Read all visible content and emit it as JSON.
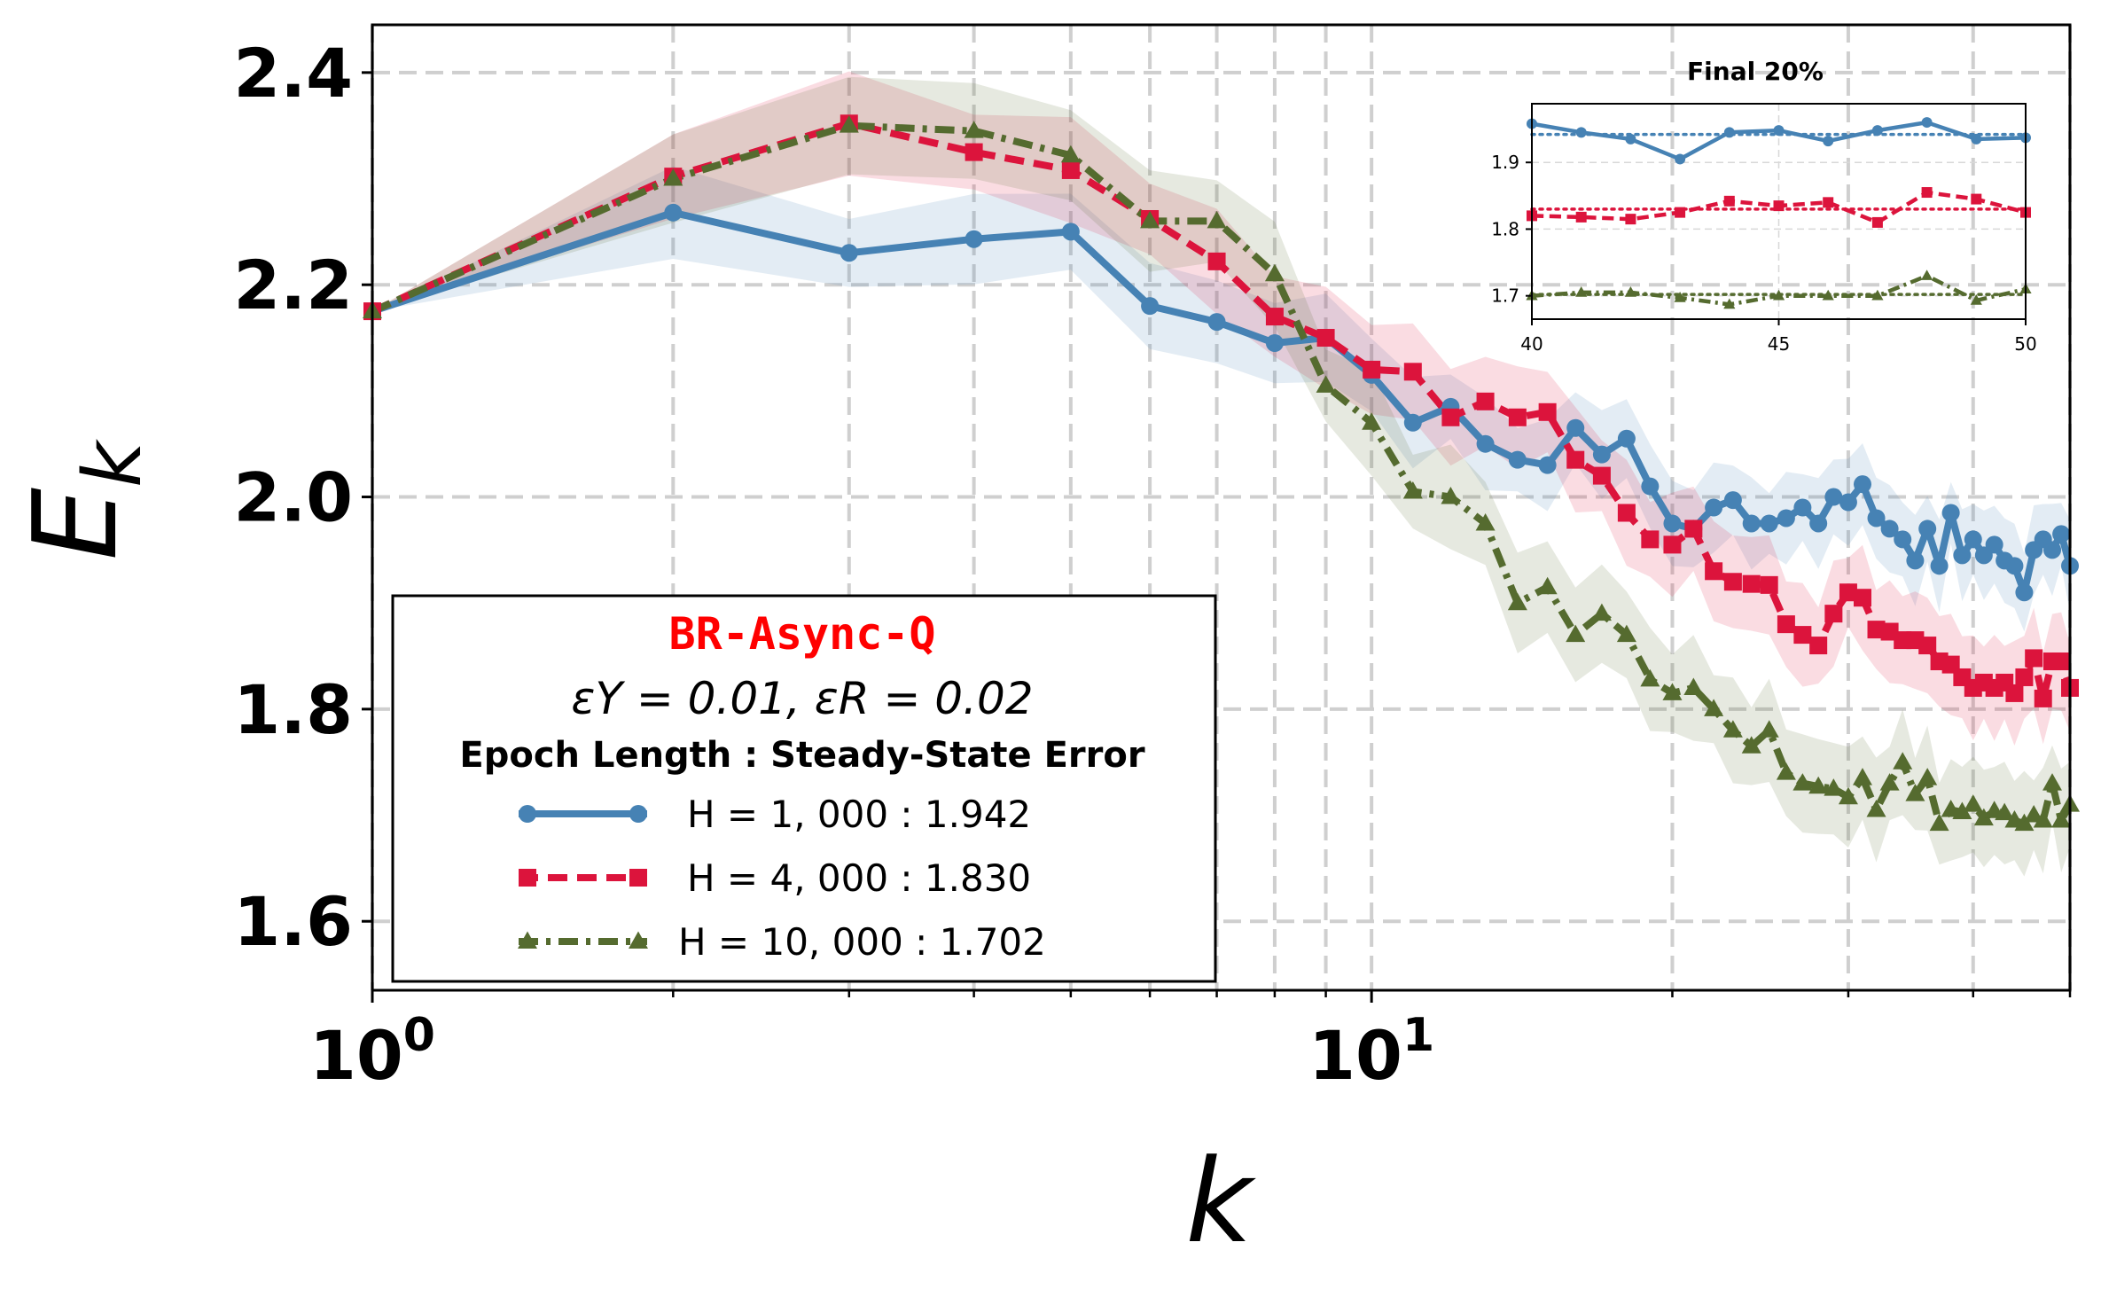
{
  "chart_data": [
    {
      "type": "line",
      "xscale": "log",
      "xlabel": "k",
      "ylabel": "E_k",
      "xlim": [
        1,
        50
      ],
      "ylim": [
        1.535,
        2.445
      ],
      "x_ticks": [
        {
          "v": 1,
          "base": "10",
          "exp": "0"
        },
        {
          "v": 10,
          "base": "10",
          "exp": "1"
        }
      ],
      "y_ticks": [
        1.6,
        1.8,
        2.0,
        2.2,
        2.4
      ],
      "y_tick_labels": [
        "1.6",
        "1.8",
        "2.0",
        "2.2",
        "2.4"
      ],
      "grid": true,
      "legend": {
        "placement": "lower-left",
        "title": "BR-Async-Q",
        "subtitle": "εY = 0.01,  εR = 0.02",
        "header": "Epoch Length : Steady-State Error",
        "entries": [
          "H = 1, 000 :  1.942",
          "H = 4, 000 :  1.830",
          "H = 10, 000 :  1.702"
        ]
      },
      "x": [
        1,
        2,
        3,
        4,
        5,
        6,
        7,
        8,
        9,
        10,
        11,
        12,
        13,
        14,
        15,
        16,
        17,
        18,
        19,
        20,
        21,
        22,
        23,
        24,
        25,
        26,
        27,
        28,
        29,
        30,
        31,
        32,
        33,
        34,
        35,
        36,
        37,
        38,
        39,
        40,
        41,
        42,
        43,
        44,
        45,
        46,
        47,
        48,
        49,
        50
      ],
      "series": [
        {
          "name": "H = 1,000",
          "color": "#4682b4",
          "marker": "circle",
          "dash": "solid",
          "values": [
            2.175,
            2.268,
            2.23,
            2.243,
            2.25,
            2.18,
            2.165,
            2.145,
            2.15,
            2.115,
            2.07,
            2.085,
            2.05,
            2.035,
            2.03,
            2.065,
            2.04,
            2.055,
            2.01,
            1.975,
            1.97,
            1.99,
            1.997,
            1.975,
            1.975,
            1.98,
            1.99,
            1.975,
            2.0,
            1.995,
            2.012,
            1.98,
            1.97,
            1.96,
            1.94,
            1.97,
            1.935,
            1.985,
            1.945,
            1.96,
            1.945,
            1.955,
            1.94,
            1.935,
            1.91,
            1.95,
            1.96,
            1.95,
            1.965,
            1.935
          ],
          "band": 0.035
        },
        {
          "name": "H = 4,000",
          "color": "#dc143c",
          "marker": "square",
          "dash": "dashed",
          "values": [
            2.175,
            2.302,
            2.352,
            2.325,
            2.308,
            2.262,
            2.222,
            2.17,
            2.15,
            2.12,
            2.118,
            2.075,
            2.09,
            2.075,
            2.08,
            2.035,
            2.02,
            1.985,
            1.96,
            1.955,
            1.97,
            1.93,
            1.92,
            1.918,
            1.917,
            1.88,
            1.87,
            1.86,
            1.89,
            1.91,
            1.905,
            1.875,
            1.873,
            1.865,
            1.865,
            1.86,
            1.845,
            1.842,
            1.83,
            1.82,
            1.825,
            1.82,
            1.825,
            1.815,
            1.83,
            1.848,
            1.81,
            1.845,
            1.845,
            1.82
          ],
          "band": 0.04
        },
        {
          "name": "H = 10,000",
          "color": "#556b2f",
          "marker": "triangle",
          "dash": "dashdot",
          "values": [
            2.175,
            2.3,
            2.35,
            2.345,
            2.322,
            2.26,
            2.26,
            2.21,
            2.105,
            2.07,
            2.005,
            2.0,
            1.975,
            1.9,
            1.915,
            1.87,
            1.89,
            1.87,
            1.828,
            1.815,
            1.82,
            1.8,
            1.78,
            1.765,
            1.78,
            1.74,
            1.73,
            1.727,
            1.725,
            1.717,
            1.735,
            1.705,
            1.73,
            1.75,
            1.72,
            1.735,
            1.692,
            1.705,
            1.703,
            1.71,
            1.697,
            1.704,
            1.702,
            1.695,
            1.692,
            1.7,
            1.695,
            1.73,
            1.695,
            1.71
          ],
          "band": 0.04
        }
      ]
    },
    {
      "type": "line",
      "title": "Final 20%",
      "xlim": [
        40,
        50
      ],
      "ylim": [
        1.665,
        1.988
      ],
      "x_ticks": [
        40,
        45,
        50
      ],
      "y_ticks": [
        1.7,
        1.8,
        1.9
      ],
      "y_tick_labels": [
        "1.7",
        "1.8",
        "1.9"
      ],
      "grid": true,
      "x": [
        40,
        41,
        42,
        43,
        44,
        45,
        46,
        47,
        48,
        49,
        50
      ],
      "series": [
        {
          "color": "#4682b4",
          "marker": "circle",
          "dash": "solid",
          "mean": 1.942,
          "values": [
            1.958,
            1.945,
            1.935,
            1.905,
            1.945,
            1.948,
            1.932,
            1.948,
            1.96,
            1.935,
            1.937
          ]
        },
        {
          "color": "#dc143c",
          "marker": "square",
          "dash": "dashed",
          "mean": 1.83,
          "values": [
            1.82,
            1.818,
            1.815,
            1.825,
            1.842,
            1.835,
            1.84,
            1.81,
            1.855,
            1.845,
            1.825
          ]
        },
        {
          "color": "#556b2f",
          "marker": "triangle",
          "dash": "dashdot",
          "mean": 1.702,
          "values": [
            1.7,
            1.705,
            1.705,
            1.697,
            1.687,
            1.7,
            1.7,
            1.7,
            1.73,
            1.693,
            1.71
          ]
        }
      ]
    }
  ]
}
